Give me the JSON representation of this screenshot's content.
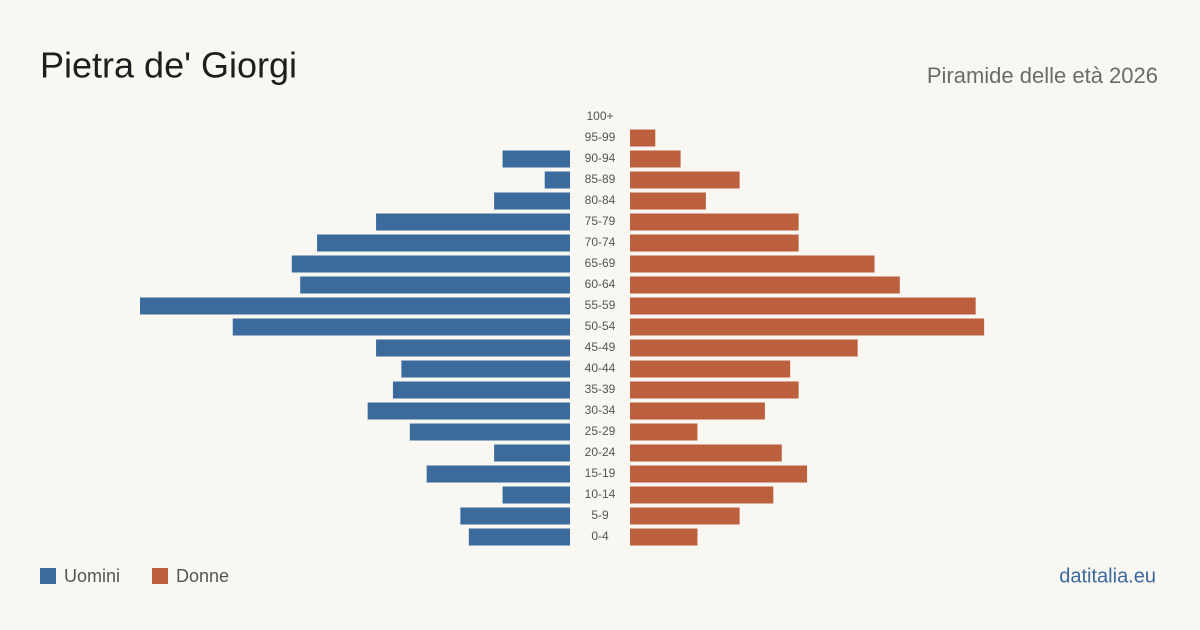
{
  "chart_data": {
    "type": "pyramid",
    "title": "Pietra de' Giorgi",
    "subtitle": "Piramide delle età 2026",
    "source": "datitalia.eu",
    "categories": [
      "100+",
      "95-99",
      "90-94",
      "85-89",
      "80-84",
      "75-79",
      "70-74",
      "65-69",
      "60-64",
      "55-59",
      "50-54",
      "45-49",
      "40-44",
      "35-39",
      "30-34",
      "25-29",
      "20-24",
      "15-19",
      "10-14",
      "5-9",
      "0-4"
    ],
    "series": [
      {
        "name": "Uomini",
        "color": "#3b6a9c",
        "values": [
          0,
          0,
          8,
          3,
          9,
          23,
          30,
          33,
          32,
          51,
          40,
          23,
          20,
          21,
          24,
          19,
          9,
          17,
          8,
          13,
          12
        ]
      },
      {
        "name": "Donne",
        "color": "#bc5f3d",
        "values": [
          0,
          3,
          6,
          13,
          9,
          20,
          20,
          29,
          32,
          41,
          42,
          27,
          19,
          20,
          16,
          8,
          18,
          21,
          17,
          13,
          8
        ]
      }
    ]
  }
}
